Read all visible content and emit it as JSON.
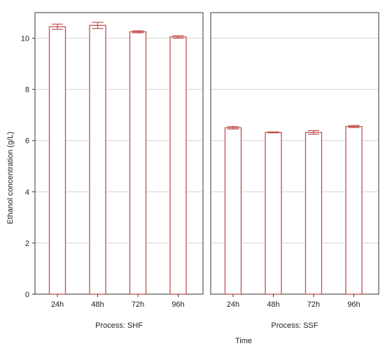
{
  "chart_data": {
    "type": "bar",
    "ylabel": "Ethanol concentration (g/L)",
    "xlabel": "Time",
    "ylim": [
      0,
      11
    ],
    "yticks": [
      0,
      2,
      4,
      6,
      8,
      10
    ],
    "grid": true,
    "error_bars": true,
    "categories": [
      "24h",
      "48h",
      "72h",
      "96h"
    ],
    "panels": [
      {
        "label": "Process: SHF",
        "values": [
          10.45,
          10.5,
          10.25,
          10.05
        ],
        "errors": [
          0.1,
          0.12,
          0.04,
          0.05
        ]
      },
      {
        "label": "Process: SSF",
        "values": [
          6.5,
          6.32,
          6.32,
          6.55
        ],
        "errors": [
          0.05,
          0.02,
          0.07,
          0.04
        ]
      }
    ],
    "colors": {
      "bar_stroke": "#c0504d",
      "bar_fill": "#ffffff",
      "grid": "#d4d4d4",
      "axis": "#333333"
    }
  }
}
